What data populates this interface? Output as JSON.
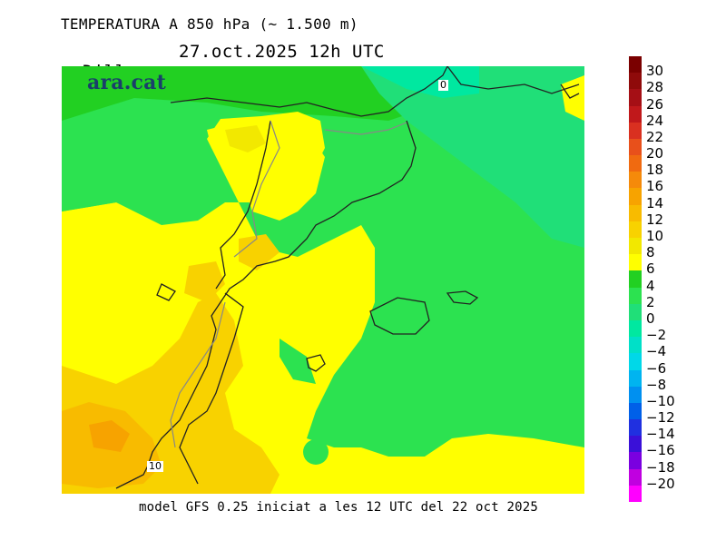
{
  "header": {
    "title": "TEMPERATURA A 850 hPa (~ 1.500 m)",
    "day": "Dilluns",
    "datetime": "27.oct.2025 12h UTC"
  },
  "map": {
    "logo": "ara.cat",
    "isoline_labels": [
      "0",
      "10"
    ]
  },
  "footer": {
    "model_info": "model GFS 0.25 iniciat a les 12 UTC del 22 oct 2025"
  },
  "legend": {
    "unit_hint": "",
    "bins": [
      {
        "label": "30",
        "color": "#7a0000"
      },
      {
        "label": "28",
        "color": "#8f0a0a"
      },
      {
        "label": "26",
        "color": "#a50f15"
      },
      {
        "label": "24",
        "color": "#c0181b"
      },
      {
        "label": "22",
        "color": "#d93020"
      },
      {
        "label": "20",
        "color": "#e8501b"
      },
      {
        "label": "18",
        "color": "#f06a10"
      },
      {
        "label": "16",
        "color": "#f58a0a"
      },
      {
        "label": "14",
        "color": "#f7a300"
      },
      {
        "label": "12",
        "color": "#f8bb00"
      },
      {
        "label": "10",
        "color": "#f8d200"
      },
      {
        "label": "8",
        "color": "#f2e800"
      },
      {
        "label": "6",
        "color": "#ffff00"
      },
      {
        "label": "4",
        "color": "#22d022"
      },
      {
        "label": "2",
        "color": "#2ce250"
      },
      {
        "label": "0",
        "color": "#20df78"
      },
      {
        "label": "−2",
        "color": "#00e8a0"
      },
      {
        "label": "−4",
        "color": "#00e0c8"
      },
      {
        "label": "−6",
        "color": "#00d8e8"
      },
      {
        "label": "−8",
        "color": "#00b4f0"
      },
      {
        "label": "−10",
        "color": "#0090f0"
      },
      {
        "label": "−12",
        "color": "#0060e8"
      },
      {
        "label": "−14",
        "color": "#2030e0"
      },
      {
        "label": "−16",
        "color": "#3a10d8"
      },
      {
        "label": "−18",
        "color": "#7a00e0"
      },
      {
        "label": "−20",
        "color": "#c000e0"
      },
      {
        "label": "",
        "color": "#ff00ff"
      }
    ]
  }
}
